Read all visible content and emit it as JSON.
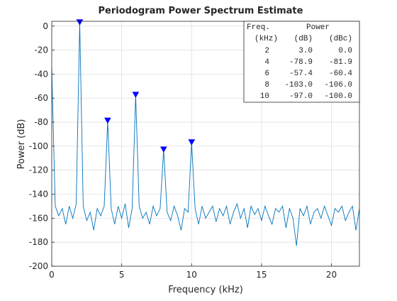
{
  "chart_data": {
    "type": "line",
    "title": "Periodogram Power Spectrum Estimate",
    "x_label": "Frequency (kHz)",
    "y_label": "Power (dB)",
    "x": [
      0,
      0.25,
      0.5,
      0.75,
      1,
      1.25,
      1.5,
      1.75,
      2,
      2.25,
      2.5,
      2.75,
      3,
      3.25,
      3.5,
      3.75,
      4,
      4.25,
      4.5,
      4.75,
      5,
      5.25,
      5.5,
      5.75,
      6,
      6.25,
      6.5,
      6.75,
      7,
      7.25,
      7.5,
      7.75,
      8,
      8.25,
      8.5,
      8.75,
      9,
      9.25,
      9.5,
      9.75,
      10,
      10.25,
      10.5,
      10.75,
      11,
      11.25,
      11.5,
      11.75,
      12,
      12.25,
      12.5,
      12.75,
      13,
      13.25,
      13.5,
      13.75,
      14,
      14.25,
      14.5,
      14.75,
      15,
      15.25,
      15.5,
      15.75,
      16,
      16.25,
      16.5,
      16.75,
      17,
      17.25,
      17.5,
      17.75,
      18,
      18.25,
      18.5,
      18.75,
      19,
      19.25,
      19.5,
      19.75,
      20,
      20.25,
      20.5,
      20.75,
      21,
      21.25,
      21.5,
      21.75,
      22
    ],
    "series": [
      {
        "color": "#0072bd",
        "values": [
          -35,
          -150,
          -158,
          -152,
          -165,
          -150,
          -160,
          -148,
          3,
          -150,
          -162,
          -155,
          -170,
          -152,
          -158,
          -150,
          -78.9,
          -152,
          -165,
          -150,
          -160,
          -148,
          -168,
          -152,
          -57.4,
          -150,
          -160,
          -155,
          -165,
          -150,
          -158,
          -152,
          -103,
          -155,
          -162,
          -150,
          -158,
          -170,
          -152,
          -155,
          -97,
          -152,
          -165,
          -150,
          -160,
          -155,
          -150,
          -163,
          -152,
          -158,
          -150,
          -165,
          -155,
          -148,
          -160,
          -152,
          -168,
          -150,
          -157,
          -152,
          -162,
          -150,
          -158,
          -165,
          -152,
          -155,
          -150,
          -168,
          -152,
          -160,
          -183,
          -152,
          -158,
          -150,
          -165,
          -155,
          -152,
          -160,
          -150,
          -158,
          -166,
          -152,
          -155,
          -150,
          -162,
          -155,
          -150,
          -170,
          -152
        ]
      }
    ],
    "markers": {
      "color": "#0000ff",
      "x": [
        2,
        4,
        6,
        8,
        10
      ],
      "values": [
        3,
        -78.9,
        -57.4,
        -103,
        -97
      ]
    },
    "xlim": [
      0,
      22
    ],
    "xticks": [
      0,
      5,
      10,
      15,
      20
    ],
    "ylim": [
      -200,
      4
    ],
    "yticks": [
      -200,
      -180,
      -160,
      -140,
      -120,
      -100,
      -80,
      -60,
      -40,
      -20,
      0
    ],
    "grid": true,
    "table": {
      "header": [
        [
          "Freq.",
          "Power"
        ],
        [
          "(kHz)",
          "(dB)",
          "(dBc)"
        ]
      ],
      "rows": [
        [
          "2",
          "3.0",
          "0.0"
        ],
        [
          "4",
          "-78.9",
          "-81.9"
        ],
        [
          "6",
          "-57.4",
          "-60.4"
        ],
        [
          "8",
          "-103.0",
          "-106.0"
        ],
        [
          "10",
          "-97.0",
          "-100.0"
        ]
      ]
    }
  }
}
